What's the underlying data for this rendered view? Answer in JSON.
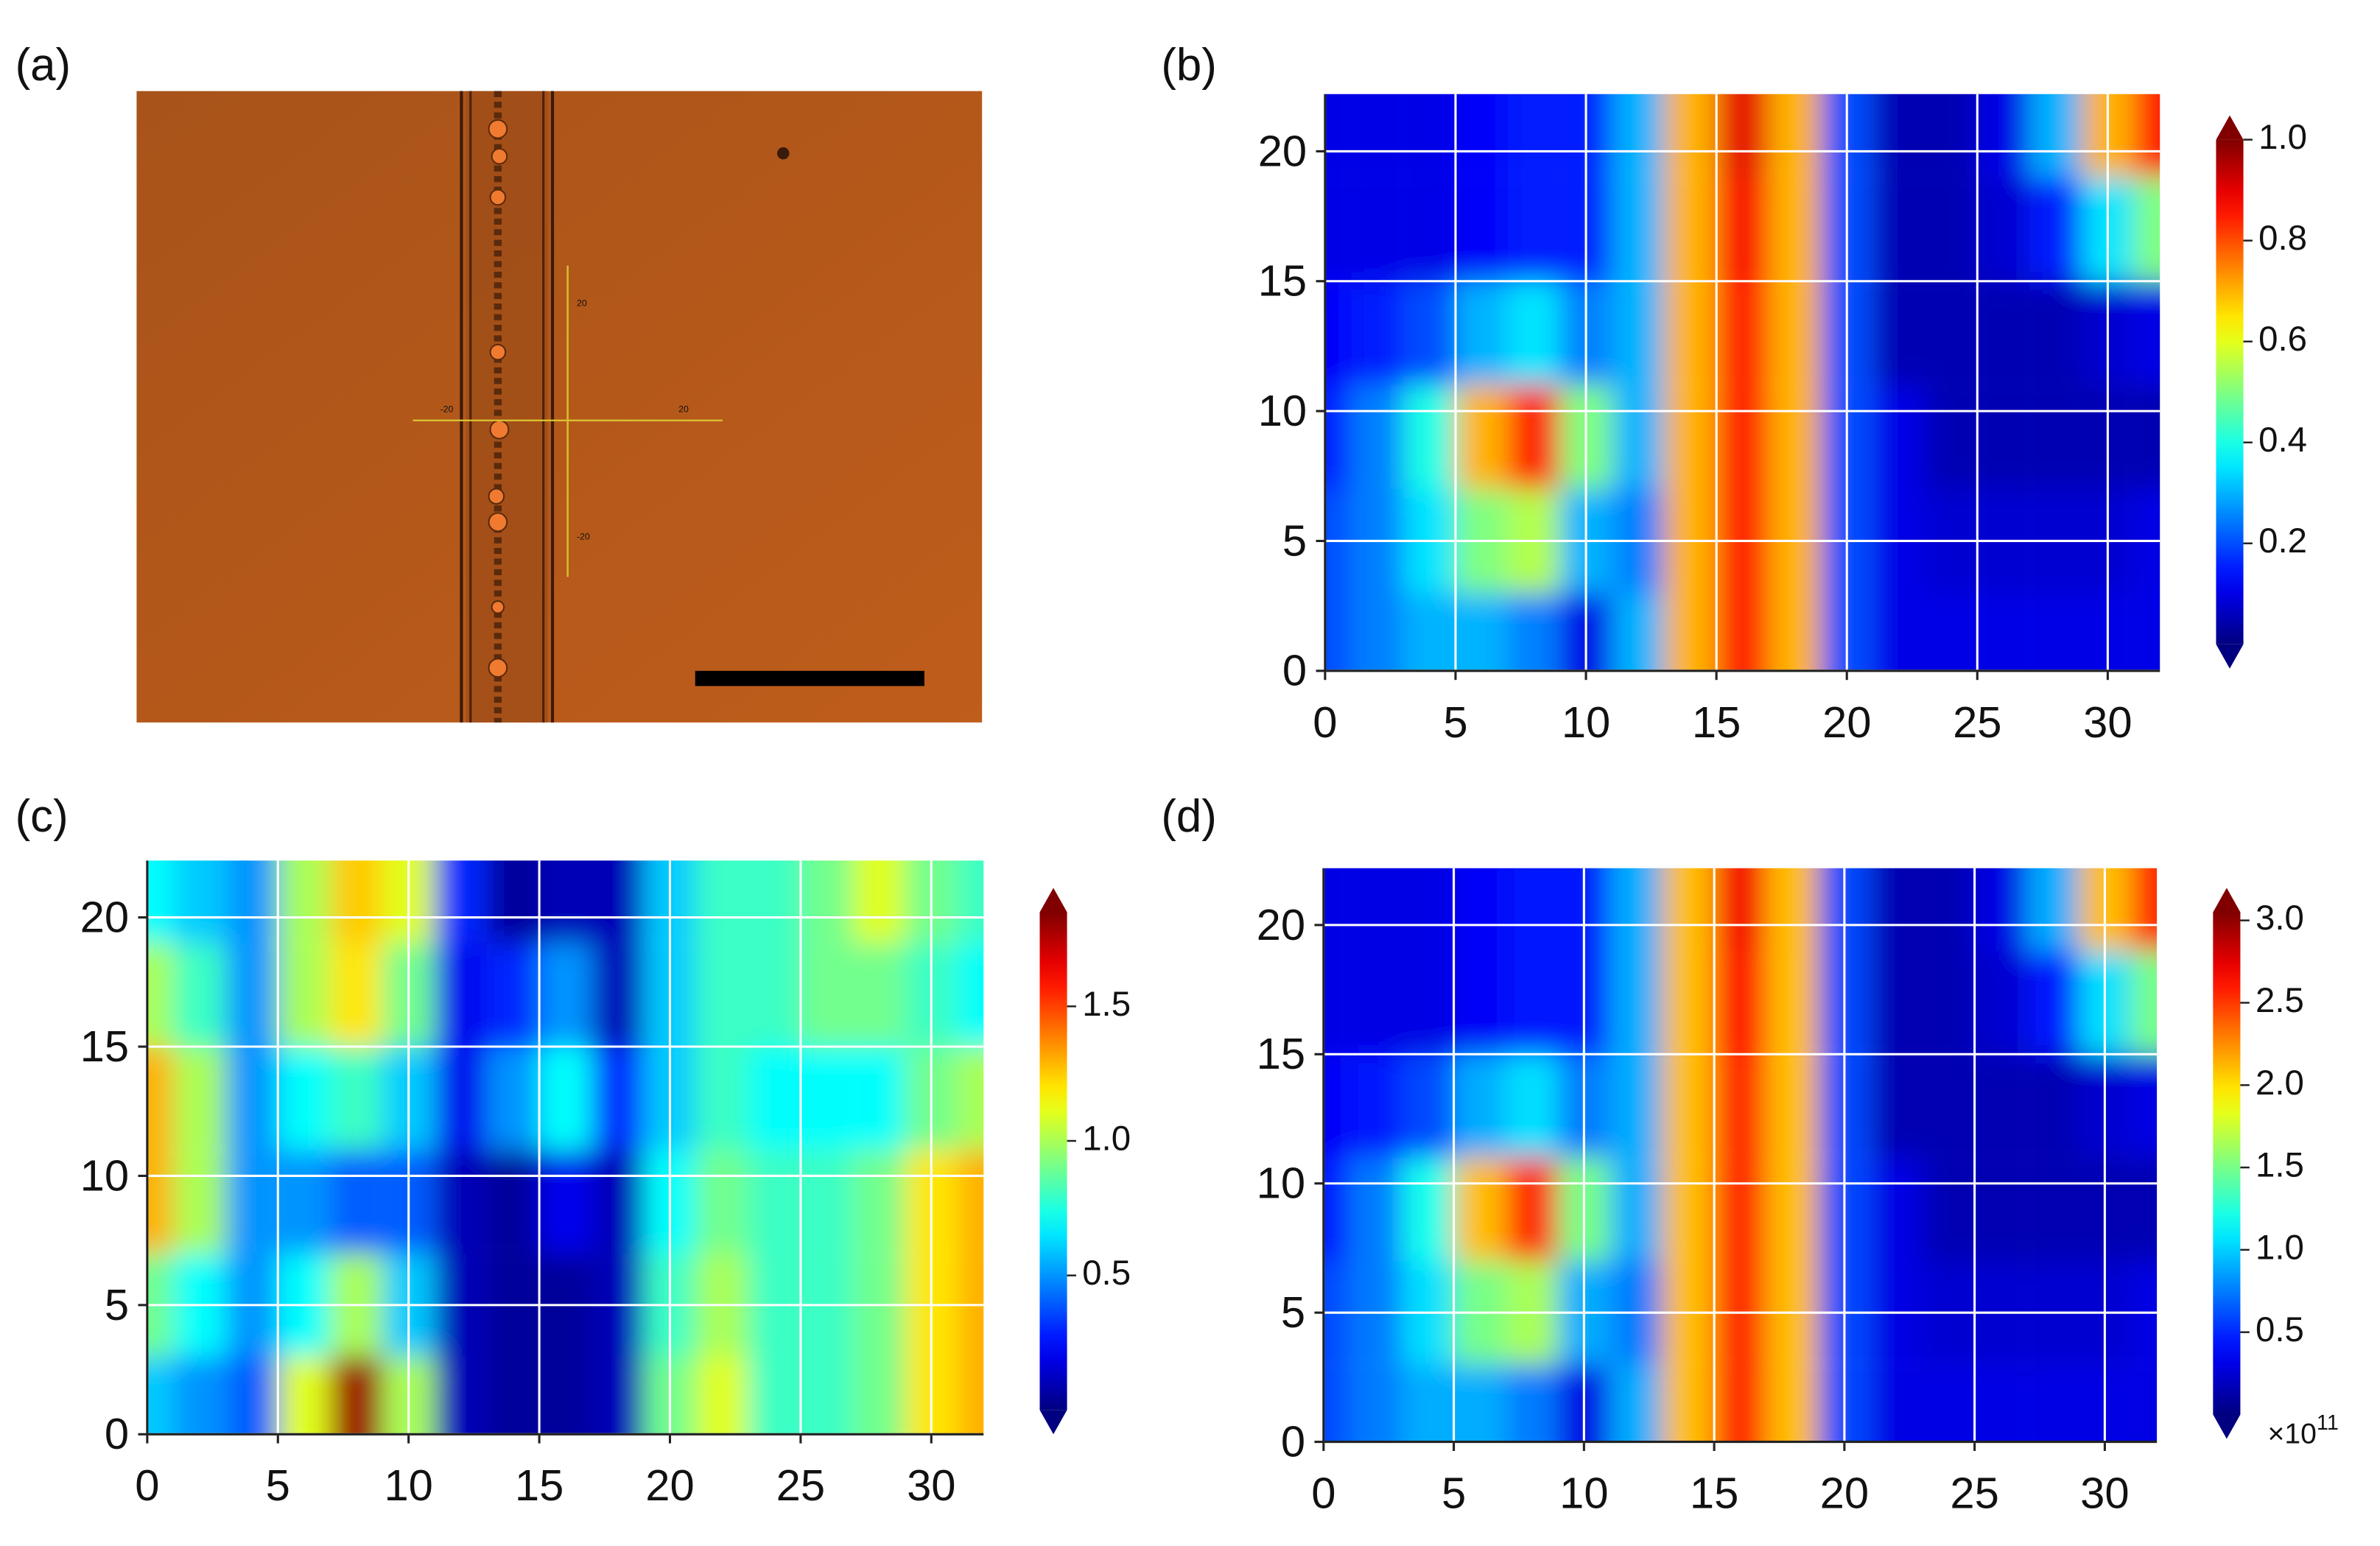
{
  "image_panel": {
    "label": "(a)",
    "crosshair_labels": [
      "20",
      "-20",
      "20",
      "-20"
    ]
  },
  "chart_data": [
    {
      "type": "heatmap",
      "label": "(b)",
      "x": [
        0,
        2,
        4,
        6,
        8,
        10,
        12,
        14,
        16,
        18,
        20,
        22,
        24,
        26,
        28,
        30,
        32
      ],
      "y": [
        21,
        17,
        13,
        9,
        5,
        1
      ],
      "z": [
        [
          0.1,
          0.1,
          0.1,
          0.12,
          0.15,
          0.15,
          0.3,
          0.7,
          0.9,
          0.7,
          0.2,
          0.05,
          0.05,
          0.1,
          0.3,
          0.7,
          0.85
        ],
        [
          0.1,
          0.1,
          0.1,
          0.12,
          0.15,
          0.15,
          0.3,
          0.7,
          0.88,
          0.7,
          0.2,
          0.05,
          0.05,
          0.08,
          0.15,
          0.35,
          0.5
        ],
        [
          0.12,
          0.15,
          0.2,
          0.3,
          0.35,
          0.25,
          0.3,
          0.7,
          0.85,
          0.7,
          0.2,
          0.05,
          0.05,
          0.05,
          0.05,
          0.08,
          0.1
        ],
        [
          0.15,
          0.25,
          0.4,
          0.7,
          0.85,
          0.5,
          0.3,
          0.7,
          0.85,
          0.7,
          0.2,
          0.1,
          0.05,
          0.05,
          0.05,
          0.05,
          0.05
        ],
        [
          0.2,
          0.25,
          0.35,
          0.5,
          0.55,
          0.3,
          0.25,
          0.7,
          0.85,
          0.7,
          0.2,
          0.1,
          0.08,
          0.08,
          0.08,
          0.08,
          0.1
        ],
        [
          0.2,
          0.25,
          0.3,
          0.3,
          0.25,
          0.1,
          0.3,
          0.7,
          0.85,
          0.7,
          0.2,
          0.1,
          0.1,
          0.1,
          0.1,
          0.1,
          0.1
        ]
      ],
      "xlim": [
        0,
        32
      ],
      "ylim": [
        0,
        22.2
      ],
      "xticks": [
        0,
        5,
        10,
        15,
        20,
        25,
        30
      ],
      "yticks": [
        0,
        5,
        10,
        15,
        20
      ],
      "clim": [
        0,
        1
      ],
      "colorbar_ticks": [
        0.2,
        0.4,
        0.6,
        0.8,
        {
          "value": 1,
          "label": "1.0"
        }
      ],
      "grid": true
    },
    {
      "type": "heatmap",
      "label": "(c)",
      "x": [
        0,
        2,
        4,
        6,
        8,
        10,
        12,
        14,
        16,
        18,
        20,
        22,
        24,
        26,
        28,
        30,
        32
      ],
      "y": [
        21,
        17,
        13,
        9,
        5,
        1
      ],
      "z": [
        [
          0.7,
          0.6,
          0.5,
          1.0,
          1.25,
          1.1,
          0.3,
          0.05,
          0.1,
          0.1,
          0.6,
          0.8,
          0.8,
          0.9,
          1.1,
          0.9,
          0.8
        ],
        [
          1.0,
          0.8,
          0.5,
          1.0,
          1.2,
          0.9,
          0.2,
          0.3,
          0.5,
          0.1,
          0.6,
          0.8,
          0.8,
          0.9,
          0.9,
          0.8,
          0.7
        ],
        [
          1.3,
          1.0,
          0.5,
          0.7,
          0.8,
          0.6,
          0.2,
          0.5,
          0.7,
          0.3,
          0.6,
          0.8,
          0.7,
          0.7,
          0.7,
          0.9,
          1.0
        ],
        [
          1.3,
          1.0,
          0.5,
          0.5,
          0.4,
          0.4,
          0.1,
          0.05,
          0.2,
          0.1,
          0.7,
          0.9,
          0.8,
          0.8,
          0.9,
          1.2,
          1.3
        ],
        [
          0.9,
          0.7,
          0.5,
          0.7,
          1.0,
          0.6,
          0.1,
          0.05,
          0.05,
          0.1,
          0.8,
          1.0,
          0.8,
          0.8,
          0.9,
          1.2,
          1.3
        ],
        [
          0.6,
          0.5,
          0.4,
          1.1,
          1.8,
          1.0,
          0.1,
          0.05,
          0.05,
          0.1,
          0.9,
          1.1,
          0.8,
          0.8,
          0.9,
          1.2,
          1.3
        ]
      ],
      "xlim": [
        0,
        32
      ],
      "ylim": [
        0,
        22.2
      ],
      "xticks": [
        0,
        5,
        10,
        15,
        20,
        25,
        30
      ],
      "yticks": [
        0,
        5,
        10,
        15,
        20
      ],
      "clim": [
        0,
        1.85
      ],
      "colorbar_ticks": [
        0.5,
        {
          "value": 1,
          "label": "1.0"
        },
        1.5
      ],
      "grid": true
    },
    {
      "type": "heatmap",
      "label": "(d)",
      "x": [
        0,
        2,
        4,
        6,
        8,
        10,
        12,
        14,
        16,
        18,
        20,
        22,
        24,
        26,
        28,
        30,
        32
      ],
      "y": [
        21,
        17,
        13,
        9,
        5,
        1
      ],
      "z": [
        [
          0.3,
          0.3,
          0.3,
          0.36,
          0.45,
          0.45,
          0.9,
          2.1,
          2.7,
          2.1,
          0.6,
          0.15,
          0.15,
          0.3,
          0.9,
          2.1,
          2.55
        ],
        [
          0.3,
          0.3,
          0.3,
          0.36,
          0.45,
          0.45,
          0.9,
          2.1,
          2.64,
          2.1,
          0.6,
          0.15,
          0.15,
          0.24,
          0.45,
          1.05,
          1.5
        ],
        [
          0.36,
          0.45,
          0.6,
          0.9,
          1.05,
          0.75,
          0.9,
          2.1,
          2.55,
          2.1,
          0.6,
          0.15,
          0.15,
          0.15,
          0.15,
          0.24,
          0.3
        ],
        [
          0.45,
          0.75,
          1.2,
          2.1,
          2.55,
          1.5,
          0.9,
          2.1,
          2.55,
          2.1,
          0.6,
          0.3,
          0.15,
          0.15,
          0.15,
          0.15,
          0.15
        ],
        [
          0.6,
          0.75,
          1.05,
          1.5,
          1.65,
          0.9,
          0.75,
          2.1,
          2.55,
          2.1,
          0.6,
          0.3,
          0.24,
          0.24,
          0.24,
          0.24,
          0.3
        ],
        [
          0.6,
          0.75,
          0.9,
          0.9,
          0.75,
          0.3,
          0.9,
          2.1,
          2.55,
          2.1,
          0.6,
          0.3,
          0.3,
          0.3,
          0.3,
          0.3,
          0.3
        ]
      ],
      "xlim": [
        0,
        32
      ],
      "ylim": [
        0,
        22.2
      ],
      "xticks": [
        0,
        5,
        10,
        15,
        20,
        25,
        30
      ],
      "yticks": [
        0,
        5,
        10,
        15,
        20
      ],
      "clim": [
        0,
        3.05
      ],
      "colorbar_ticks": [
        0.5,
        {
          "value": 1,
          "label": "1.0"
        },
        1.5,
        {
          "value": 2,
          "label": "2.0"
        },
        2.5,
        {
          "value": 3,
          "label": "3.0"
        }
      ],
      "colorbar_multiplier": {
        "base": "×10",
        "exponent": "11"
      },
      "grid": true
    }
  ]
}
